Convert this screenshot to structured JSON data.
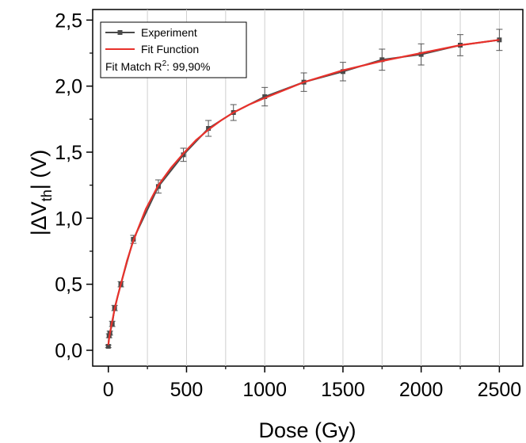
{
  "chart_data": {
    "type": "line",
    "xlabel": "Dose (Gy)",
    "ylabel": {
      "prefix": "|ΔV",
      "sub": "th",
      "suffix": "| (V)"
    },
    "xlim": [
      -100,
      2650
    ],
    "ylim": [
      -0.12,
      2.58
    ],
    "x_ticks": [
      0,
      500,
      1000,
      1500,
      2000,
      2500
    ],
    "x_tick_labels": [
      "0",
      "500",
      "1000",
      "1500",
      "2000",
      "2500"
    ],
    "y_ticks": [
      0.0,
      0.5,
      1.0,
      1.5,
      2.0,
      2.5
    ],
    "y_tick_labels": [
      "0,0",
      "0,5",
      "1,0",
      "1,5",
      "2,0",
      "2,5"
    ],
    "grid": "vertical",
    "legend": {
      "placement": "top-left",
      "entries": [
        "Experiment",
        "Fit Function"
      ],
      "note": {
        "prefix": "Fit Match R",
        "sup": "2",
        "suffix": ": 99,90%"
      }
    },
    "series": [
      {
        "name": "Experiment",
        "color": "#4a4a4a",
        "marker": "square",
        "x": [
          0,
          5,
          10,
          25,
          40,
          80,
          160,
          320,
          480,
          640,
          800,
          1000,
          1250,
          1500,
          1750,
          2000,
          2250,
          2500
        ],
        "y": [
          0.03,
          0.11,
          0.13,
          0.2,
          0.32,
          0.5,
          0.84,
          1.24,
          1.48,
          1.68,
          1.8,
          1.92,
          2.03,
          2.11,
          2.2,
          2.24,
          2.31,
          2.35
        ],
        "err": [
          0.01,
          0.015,
          0.015,
          0.02,
          0.02,
          0.02,
          0.03,
          0.05,
          0.05,
          0.06,
          0.06,
          0.07,
          0.07,
          0.07,
          0.08,
          0.08,
          0.08,
          0.08
        ]
      },
      {
        "name": "Fit Function",
        "color": "#e8312b",
        "x": [
          0,
          5,
          10,
          25,
          40,
          60,
          80,
          120,
          160,
          240,
          320,
          400,
          480,
          560,
          640,
          720,
          800,
          900,
          1000,
          1250,
          1500,
          1750,
          2000,
          2250,
          2500
        ],
        "y": [
          0.04,
          0.09,
          0.13,
          0.22,
          0.31,
          0.41,
          0.5,
          0.68,
          0.83,
          1.07,
          1.25,
          1.38,
          1.49,
          1.59,
          1.67,
          1.74,
          1.8,
          1.86,
          1.91,
          2.03,
          2.12,
          2.19,
          2.25,
          2.31,
          2.35
        ]
      }
    ]
  }
}
